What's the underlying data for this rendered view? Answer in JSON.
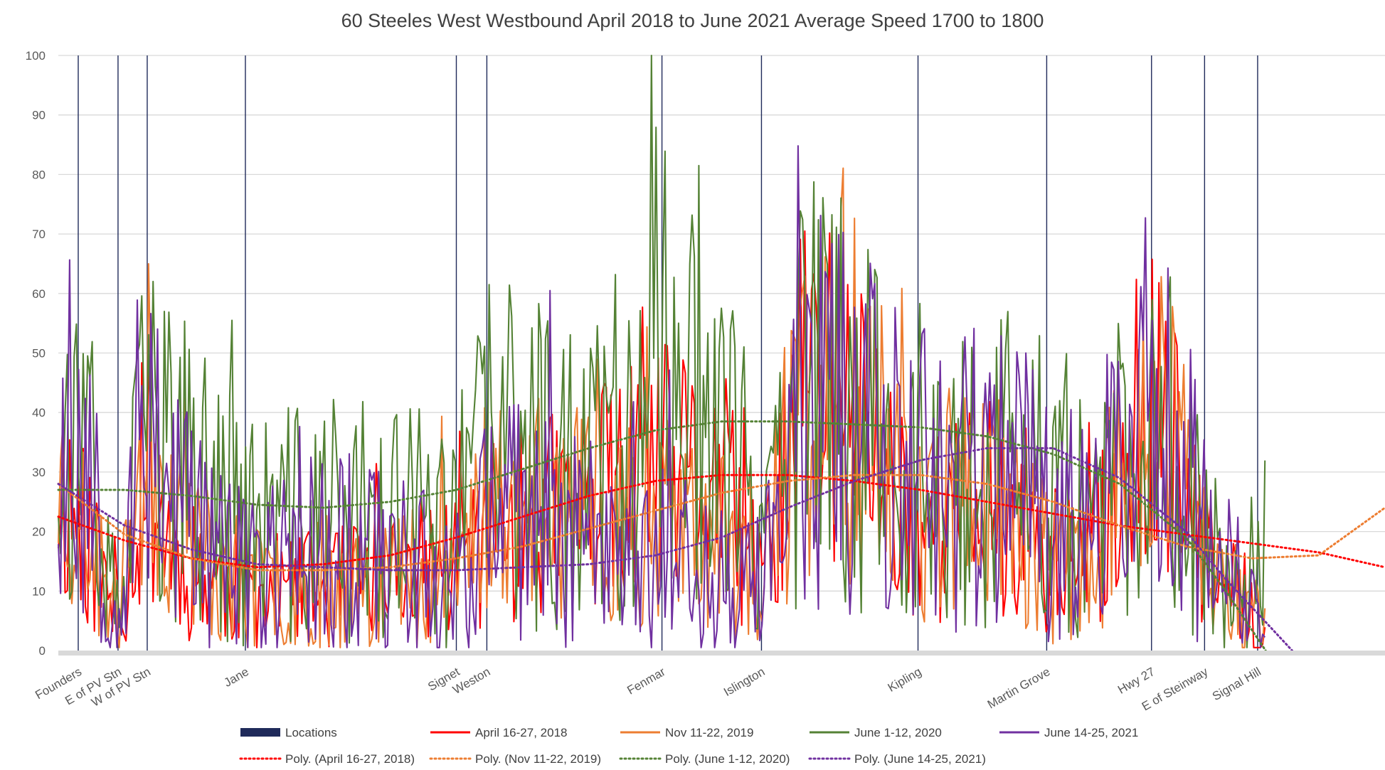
{
  "chart_data": {
    "type": "line",
    "title": "60 Steeles West Westbound April 2018 to June 2021 Average Speed 1700 to 1800",
    "xlabel": "",
    "ylabel": "",
    "ylim": [
      0,
      100
    ],
    "xlim": [
      0,
      1000
    ],
    "yticks": [
      0,
      10,
      20,
      30,
      40,
      50,
      60,
      70,
      80,
      90,
      100
    ],
    "grid": true,
    "legend_position": "bottom",
    "locations": [
      {
        "name": "Founders",
        "x": 15
      },
      {
        "name": "E of PV Stn",
        "x": 45
      },
      {
        "name": "W of PV Stn",
        "x": 67
      },
      {
        "name": "Jane",
        "x": 141
      },
      {
        "name": "Signet",
        "x": 300
      },
      {
        "name": "Weston",
        "x": 323
      },
      {
        "name": "Fenmar",
        "x": 455
      },
      {
        "name": "Islington",
        "x": 530
      },
      {
        "name": "Kipling",
        "x": 648
      },
      {
        "name": "Martin Grove",
        "x": 745
      },
      {
        "name": "Hwy 27",
        "x": 824
      },
      {
        "name": "E of Steinway",
        "x": 864
      },
      {
        "name": "Signal Hill",
        "x": 904
      }
    ],
    "legend": [
      {
        "name": "Locations",
        "color": "#1f2a5a",
        "style": "box"
      },
      {
        "name": "April 16-27, 2018",
        "color": "#ff0000",
        "style": "line"
      },
      {
        "name": "Nov 11-22, 2019",
        "color": "#ed7d31",
        "style": "line"
      },
      {
        "name": "June 1-12, 2020",
        "color": "#548235",
        "style": "line"
      },
      {
        "name": "June 14-25, 2021",
        "color": "#7030a0",
        "style": "line"
      },
      {
        "name": "Poly. (April 16-27, 2018)",
        "color": "#ff0000",
        "style": "dotted"
      },
      {
        "name": "Poly. (Nov 11-22, 2019)",
        "color": "#ed7d31",
        "style": "dotted"
      },
      {
        "name": "Poly. (June 1-12, 2020)",
        "color": "#548235",
        "style": "dotted"
      },
      {
        "name": "Poly. (June 14-25, 2021)",
        "color": "#7030a0",
        "style": "dotted"
      }
    ],
    "series": [
      {
        "name": "April 16-27, 2018",
        "color": "#ff0000",
        "seed": 11,
        "amp": 0.8,
        "base": [
          [
            0,
            28
          ],
          [
            15,
            22
          ],
          [
            45,
            5
          ],
          [
            67,
            30
          ],
          [
            90,
            15
          ],
          [
            141,
            10
          ],
          [
            200,
            10
          ],
          [
            300,
            15
          ],
          [
            323,
            20
          ],
          [
            400,
            25
          ],
          [
            455,
            30
          ],
          [
            500,
            28
          ],
          [
            530,
            10
          ],
          [
            560,
            45
          ],
          [
            600,
            40
          ],
          [
            648,
            20
          ],
          [
            700,
            25
          ],
          [
            745,
            15
          ],
          [
            780,
            15
          ],
          [
            824,
            45
          ],
          [
            864,
            15
          ],
          [
            904,
            5
          ],
          [
            910,
            2
          ]
        ]
      },
      {
        "name": "Nov 11-22, 2019",
        "color": "#ed7d31",
        "seed": 23,
        "amp": 0.85,
        "base": [
          [
            0,
            30
          ],
          [
            15,
            22
          ],
          [
            45,
            5
          ],
          [
            67,
            38
          ],
          [
            90,
            20
          ],
          [
            141,
            10
          ],
          [
            200,
            12
          ],
          [
            300,
            14
          ],
          [
            323,
            25
          ],
          [
            400,
            22
          ],
          [
            455,
            22
          ],
          [
            500,
            18
          ],
          [
            530,
            10
          ],
          [
            560,
            42
          ],
          [
            600,
            42
          ],
          [
            648,
            22
          ],
          [
            700,
            28
          ],
          [
            745,
            15
          ],
          [
            780,
            14
          ],
          [
            824,
            45
          ],
          [
            864,
            18
          ],
          [
            904,
            5
          ],
          [
            910,
            2
          ]
        ]
      },
      {
        "name": "June 1-12, 2020",
        "color": "#548235",
        "seed": 37,
        "amp": 1.0,
        "base": [
          [
            0,
            40
          ],
          [
            15,
            32
          ],
          [
            45,
            5
          ],
          [
            67,
            40
          ],
          [
            90,
            30
          ],
          [
            141,
            20
          ],
          [
            200,
            22
          ],
          [
            300,
            20
          ],
          [
            323,
            35
          ],
          [
            400,
            28
          ],
          [
            455,
            50
          ],
          [
            500,
            45
          ],
          [
            530,
            12
          ],
          [
            560,
            45
          ],
          [
            600,
            45
          ],
          [
            648,
            25
          ],
          [
            700,
            30
          ],
          [
            745,
            30
          ],
          [
            780,
            20
          ],
          [
            824,
            42
          ],
          [
            864,
            20
          ],
          [
            904,
            10
          ],
          [
            910,
            20
          ]
        ]
      },
      {
        "name": "June 14-25, 2021",
        "color": "#7030a0",
        "seed": 53,
        "amp": 1.0,
        "base": [
          [
            0,
            32
          ],
          [
            15,
            38
          ],
          [
            45,
            4
          ],
          [
            67,
            45
          ],
          [
            90,
            25
          ],
          [
            141,
            12
          ],
          [
            200,
            18
          ],
          [
            300,
            12
          ],
          [
            323,
            22
          ],
          [
            400,
            20
          ],
          [
            455,
            15
          ],
          [
            500,
            12
          ],
          [
            530,
            10
          ],
          [
            560,
            42
          ],
          [
            600,
            42
          ],
          [
            648,
            28
          ],
          [
            700,
            32
          ],
          [
            745,
            25
          ],
          [
            780,
            20
          ],
          [
            824,
            45
          ],
          [
            864,
            20
          ],
          [
            904,
            5
          ],
          [
            910,
            3
          ]
        ]
      }
    ],
    "trendlines": [
      {
        "name": "Poly. (April 16-27, 2018)",
        "color": "#ff0000",
        "points": [
          [
            0,
            22.5
          ],
          [
            50,
            18.5
          ],
          [
            100,
            15.5
          ],
          [
            150,
            14
          ],
          [
            200,
            14.5
          ],
          [
            250,
            16
          ],
          [
            300,
            19
          ],
          [
            350,
            22.5
          ],
          [
            400,
            26
          ],
          [
            450,
            28.5
          ],
          [
            500,
            29.5
          ],
          [
            550,
            29.5
          ],
          [
            600,
            28.5
          ],
          [
            650,
            27
          ],
          [
            700,
            25
          ],
          [
            750,
            23
          ],
          [
            800,
            21
          ],
          [
            850,
            19.5
          ],
          [
            900,
            18
          ],
          [
            950,
            16.5
          ],
          [
            1000,
            14
          ]
        ]
      },
      {
        "name": "Poly. (Nov 11-22, 2019)",
        "color": "#ed7d31",
        "points": [
          [
            0,
            28
          ],
          [
            50,
            19.5
          ],
          [
            100,
            15.5
          ],
          [
            150,
            13.5
          ],
          [
            200,
            13.5
          ],
          [
            250,
            14
          ],
          [
            300,
            15.5
          ],
          [
            350,
            17.5
          ],
          [
            400,
            20.5
          ],
          [
            450,
            23.5
          ],
          [
            500,
            26.5
          ],
          [
            550,
            28.5
          ],
          [
            600,
            29.5
          ],
          [
            650,
            29.5
          ],
          [
            700,
            28
          ],
          [
            750,
            25
          ],
          [
            800,
            21
          ],
          [
            850,
            17.5
          ],
          [
            900,
            15.5
          ],
          [
            950,
            16
          ],
          [
            1000,
            24
          ]
        ]
      },
      {
        "name": "Poly. (June 1-12, 2020)",
        "color": "#548235",
        "points": [
          [
            0,
            27
          ],
          [
            50,
            27
          ],
          [
            100,
            26
          ],
          [
            150,
            24.5
          ],
          [
            200,
            24
          ],
          [
            250,
            25
          ],
          [
            300,
            27
          ],
          [
            350,
            30.5
          ],
          [
            400,
            34
          ],
          [
            450,
            37
          ],
          [
            500,
            38.5
          ],
          [
            550,
            38.5
          ],
          [
            600,
            38
          ],
          [
            650,
            37.5
          ],
          [
            700,
            36
          ],
          [
            750,
            33
          ],
          [
            800,
            28
          ],
          [
            850,
            19
          ],
          [
            880,
            10
          ],
          [
            910,
            0
          ]
        ]
      },
      {
        "name": "Poly. (June 14-25, 2021)",
        "color": "#7030a0",
        "points": [
          [
            0,
            28
          ],
          [
            50,
            21
          ],
          [
            100,
            17
          ],
          [
            150,
            14.5
          ],
          [
            200,
            14
          ],
          [
            250,
            13.5
          ],
          [
            300,
            13.5
          ],
          [
            350,
            14
          ],
          [
            400,
            14.5
          ],
          [
            450,
            16
          ],
          [
            500,
            19
          ],
          [
            550,
            24
          ],
          [
            600,
            28.5
          ],
          [
            650,
            32
          ],
          [
            700,
            34
          ],
          [
            750,
            34
          ],
          [
            800,
            29
          ],
          [
            850,
            20
          ],
          [
            880,
            12
          ],
          [
            930,
            0
          ]
        ]
      }
    ]
  }
}
